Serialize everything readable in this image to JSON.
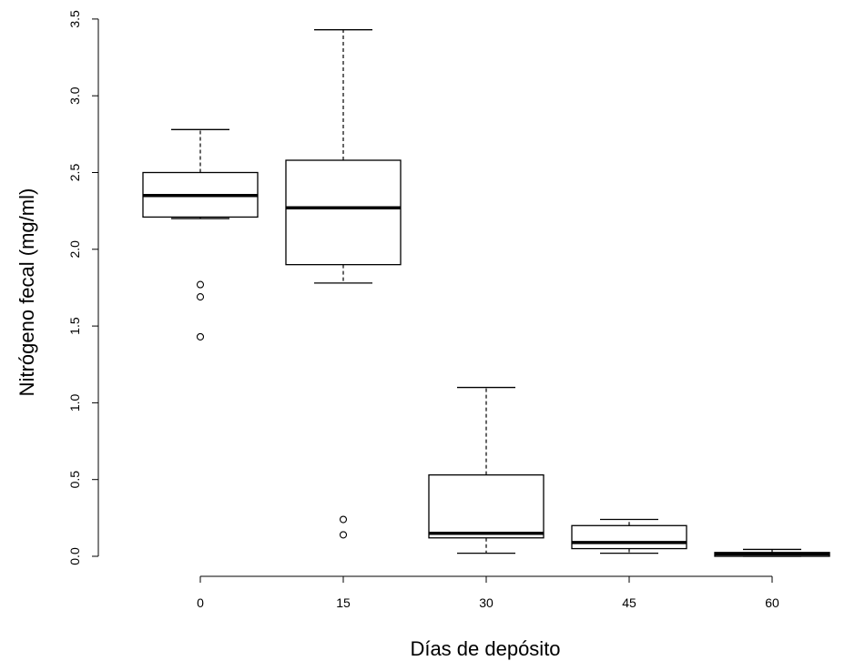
{
  "chart_data": {
    "type": "box",
    "xlabel": "Días de depósito",
    "ylabel": "Nitrógeno fecal (mg/ml)",
    "categories": [
      "0",
      "15",
      "30",
      "45",
      "60"
    ],
    "ylim": [
      -0.15,
      3.55
    ],
    "yticks": [
      "0.0",
      "0.5",
      "1.0",
      "1.5",
      "2.0",
      "2.5",
      "3.0",
      "3.5"
    ],
    "grid": false,
    "boxes": [
      {
        "category": "0",
        "whisker_low": 2.2,
        "q1": 2.21,
        "median": 2.35,
        "q3": 2.5,
        "whisker_high": 2.78,
        "outliers": [
          1.77,
          1.69,
          1.43
        ]
      },
      {
        "category": "15",
        "whisker_low": 1.78,
        "q1": 1.9,
        "median": 2.27,
        "q3": 2.58,
        "whisker_high": 3.43,
        "outliers": [
          0.24,
          0.14
        ]
      },
      {
        "category": "30",
        "whisker_low": 0.02,
        "q1": 0.12,
        "median": 0.15,
        "q3": 0.53,
        "whisker_high": 1.1,
        "outliers": []
      },
      {
        "category": "45",
        "whisker_low": 0.02,
        "q1": 0.05,
        "median": 0.09,
        "q3": 0.2,
        "whisker_high": 0.24,
        "outliers": []
      },
      {
        "category": "60",
        "whisker_low": 0.0,
        "q1": 0.0,
        "median": 0.015,
        "q3": 0.025,
        "whisker_high": 0.045,
        "outliers": []
      }
    ]
  }
}
